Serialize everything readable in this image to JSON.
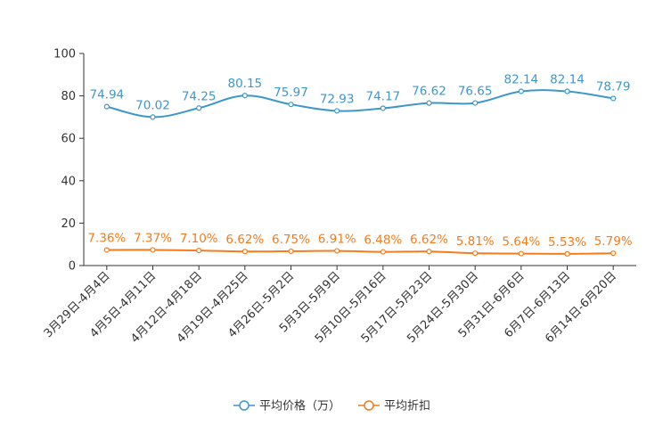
{
  "chart_data": {
    "type": "line",
    "title": "",
    "xlabel": "",
    "ylabel": "",
    "ylim": [
      0,
      100
    ],
    "yticks": [
      0,
      20,
      40,
      60,
      80,
      100
    ],
    "categories": [
      "3月29日-4月4日",
      "4月5日-4月11日",
      "4月12日-4月18日",
      "4月19日-4月25日",
      "4月26日-5月2日",
      "5月3日-5月9日",
      "5月10日-5月16日",
      "5月17日-5月23日",
      "5月24日-5月30日",
      "5月31日-6月6日",
      "6月7日-6月13日",
      "6月14日-6月20日"
    ],
    "series": [
      {
        "name": "平均价格（万）",
        "color": "#3d97cc",
        "values": [
          74.94,
          70.02,
          74.25,
          80.15,
          75.97,
          72.93,
          74.17,
          76.62,
          76.65,
          82.14,
          82.14,
          78.79
        ],
        "labels": [
          "74.94",
          "70.02",
          "74.25",
          "80.15",
          "75.97",
          "72.93",
          "74.17",
          "76.62",
          "76.65",
          "82.14",
          "82.14",
          "78.79"
        ]
      },
      {
        "name": "平均折扣",
        "color": "#f57c1c",
        "values": [
          7.36,
          7.37,
          7.1,
          6.62,
          6.75,
          6.91,
          6.48,
          6.62,
          5.81,
          5.64,
          5.53,
          5.79
        ],
        "labels": [
          "7.36%",
          "7.37%",
          "7.10%",
          "6.62%",
          "6.75%",
          "6.91%",
          "6.48%",
          "6.62%",
          "5.81%",
          "5.64%",
          "5.53%",
          "5.79%"
        ]
      }
    ],
    "legend_position": "bottom-center",
    "grid": false
  }
}
